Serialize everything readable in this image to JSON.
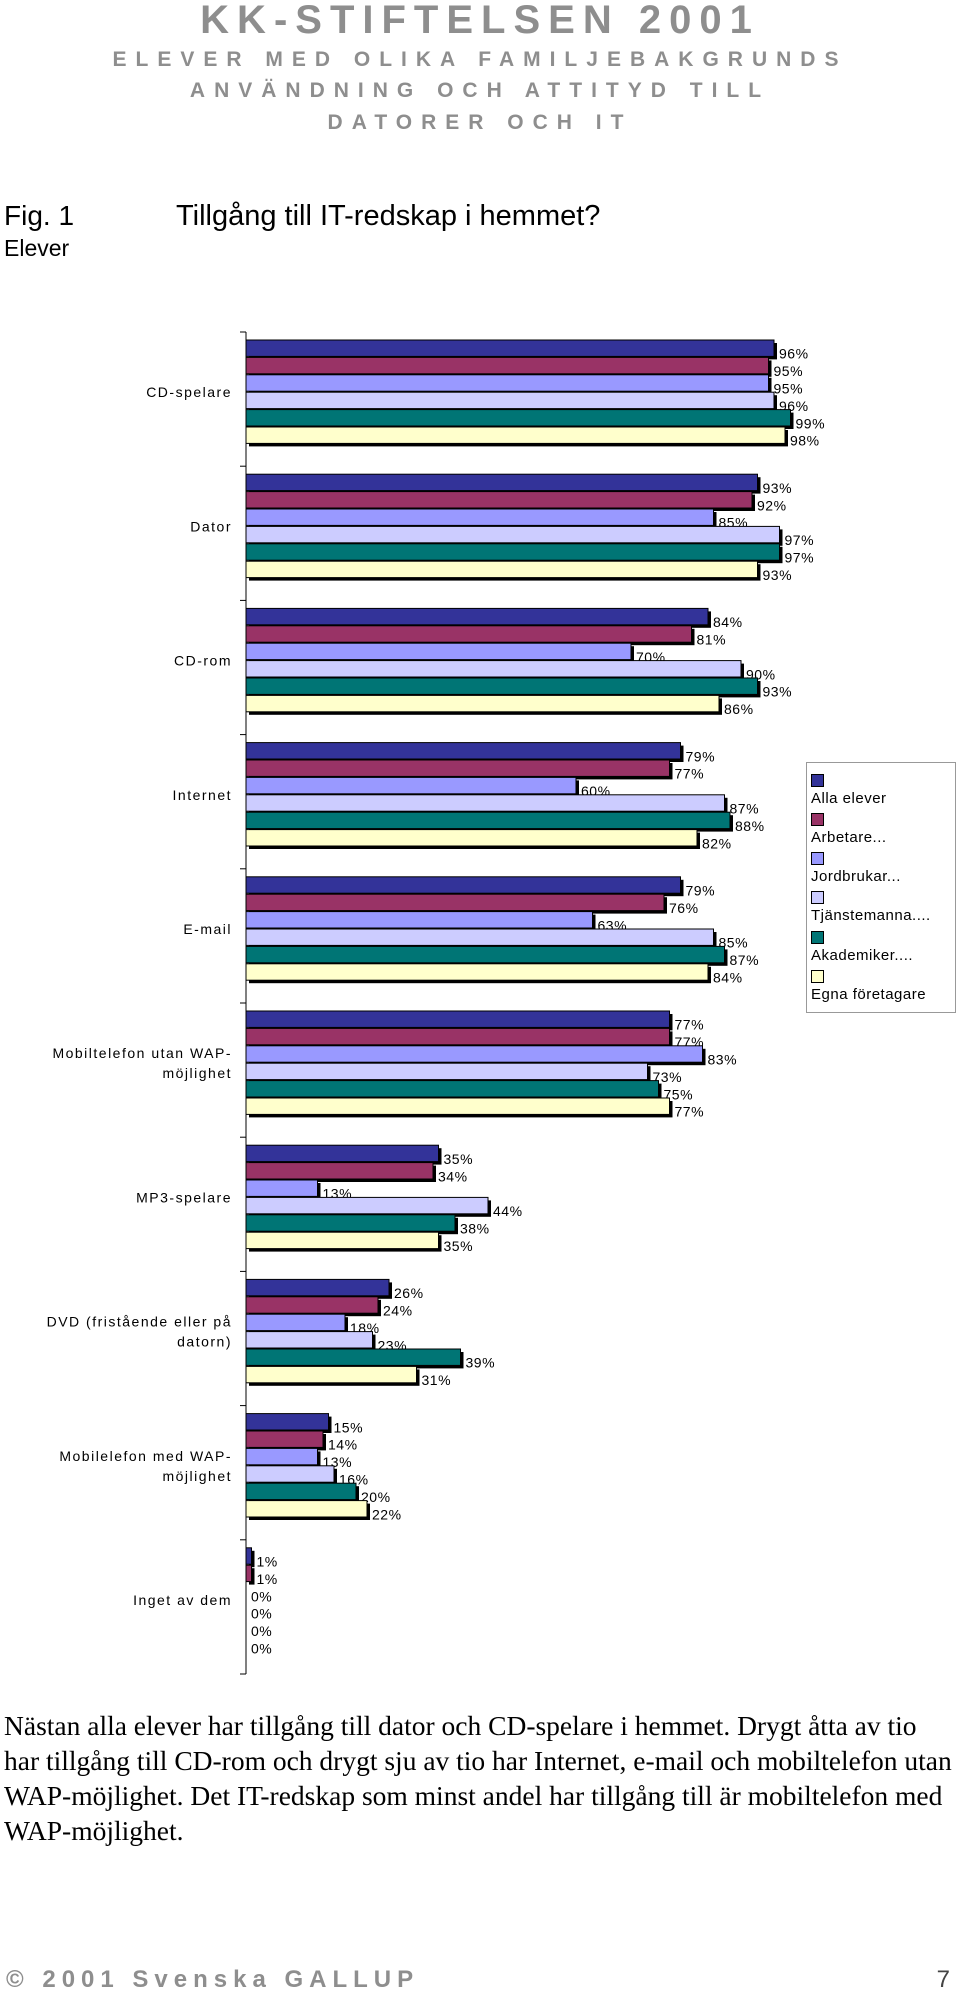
{
  "header": {
    "title": "KK-STIFTELSEN 2001",
    "subtitle_line1": "ELEVER MED OLIKA FAMILJEBAKGRUNDS",
    "subtitle_line2": "ANVÄNDNING OCH ATTITYD TILL",
    "subtitle_line3": "DATORER OCH IT"
  },
  "figure": {
    "number": "Fig. 1",
    "group": "Elever",
    "title": "Tillgång till IT-redskap i hemmet?"
  },
  "colors": {
    "series": [
      "#333399",
      "#993366",
      "#9999ff",
      "#ccccff",
      "#007575",
      "#ffffcc"
    ]
  },
  "chart_data": {
    "type": "bar",
    "orientation": "horizontal",
    "title": "Tillgång till IT-redskap i hemmet?",
    "xlabel": "",
    "ylabel": "",
    "xlim": [
      0,
      100
    ],
    "grid": false,
    "legend_position": "right",
    "categories": [
      "CD-spelare",
      "Dator",
      "CD-rom",
      "Internet",
      "E-mail",
      "Mobiltelefon utan WAP-möjlighet",
      "MP3-spelare",
      "DVD (fristående eller på datorn)",
      "Mobilelefon med WAP-möjlighet",
      "Inget av dem"
    ],
    "series": [
      {
        "name": "Alla elever",
        "values": [
          96,
          93,
          84,
          79,
          79,
          77,
          35,
          26,
          15,
          1
        ]
      },
      {
        "name": "Arbetare...",
        "values": [
          95,
          92,
          81,
          77,
          76,
          77,
          34,
          24,
          14,
          1
        ]
      },
      {
        "name": "Jordbrukar...",
        "values": [
          95,
          85,
          70,
          60,
          63,
          83,
          13,
          18,
          13,
          0
        ]
      },
      {
        "name": "Tjänstemanna....",
        "values": [
          96,
          97,
          90,
          87,
          85,
          73,
          44,
          23,
          16,
          0
        ]
      },
      {
        "name": "Akademiker....",
        "values": [
          99,
          97,
          93,
          88,
          87,
          75,
          38,
          39,
          20,
          0
        ]
      },
      {
        "name": "Egna företagare",
        "values": [
          98,
          93,
          86,
          82,
          84,
          77,
          35,
          31,
          22,
          0
        ]
      }
    ],
    "data_labels": [
      [
        "96%",
        "95%",
        "95%",
        "96%",
        "99%",
        "98%"
      ],
      [
        "93%",
        "92%",
        "85%",
        "97%",
        "97%",
        "93%"
      ],
      [
        "84%",
        "81%",
        "70%",
        "90%",
        "93%",
        "86%"
      ],
      [
        "79%",
        "77%",
        "60%",
        "87%",
        "88%",
        "82%"
      ],
      [
        "79%",
        "76%",
        "63%",
        "85%",
        "87%",
        "84%"
      ],
      [
        "77%",
        "77%",
        "83%",
        "73%",
        "75%",
        "77%"
      ],
      [
        "35%",
        "34%",
        "13%",
        "44%",
        "38%",
        "35%"
      ],
      [
        "26%",
        "24%",
        "18%",
        "23%",
        "39%",
        "31%"
      ],
      [
        "15%",
        "14%",
        "13%",
        "16%",
        "20%",
        "22%"
      ],
      [
        "1%",
        "1%",
        "0%",
        "0%",
        "0%",
        "0%"
      ]
    ]
  },
  "body_text": "Nästan alla elever har tillgång till dator och CD-spelare i hemmet. Drygt åtta av tio har tillgång till CD-rom och drygt sju av tio har Internet, e-mail och mobiltelefon utan WAP-möjlighet. Det IT-redskap som minst andel har tillgång till är mobiltelefon med WAP-möjlighet.",
  "footer": {
    "copyright": "© 2001 Svenska GALLUP",
    "page": "7"
  }
}
